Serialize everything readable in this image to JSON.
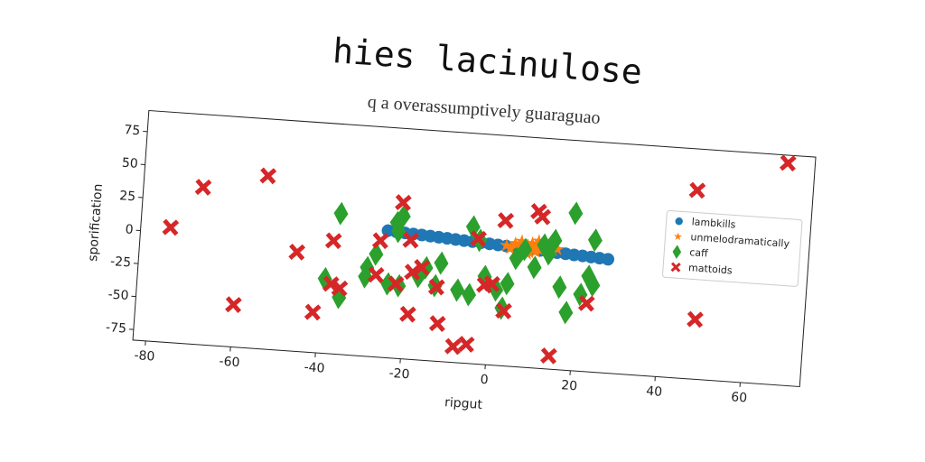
{
  "chart_data": {
    "type": "scatter",
    "title": "hies lacinulose",
    "subtitle": "q a overassumptively guaraguao",
    "xlabel": "ripgut",
    "ylabel": "sporification",
    "xlim": [
      -83,
      74
    ],
    "ylim": [
      -83,
      91
    ],
    "xticks": [
      -80,
      -60,
      -40,
      -20,
      0,
      20,
      40,
      60
    ],
    "yticks": [
      -75,
      -50,
      -25,
      0,
      25,
      50,
      75
    ],
    "grid": false,
    "legend": "right",
    "series": [
      {
        "name": "lambkills",
        "color": "#1f77b4",
        "marker": "circle",
        "x": [
          -25,
          -23,
          -21,
          -19,
          -17,
          -15,
          -13,
          -11,
          -9,
          -7,
          -5,
          -3,
          -1,
          1,
          3,
          5,
          7,
          9,
          11,
          13,
          15,
          17,
          19,
          21,
          23,
          25,
          27
        ],
        "y": [
          13,
          12.6,
          12.2,
          11.8,
          11.5,
          11.1,
          10.7,
          10.3,
          9.9,
          9.5,
          9.2,
          8.8,
          8.4,
          8,
          7.6,
          7.2,
          6.8,
          6.5,
          6.1,
          5.7,
          5.3,
          4.9,
          4.5,
          4.2,
          3.8,
          3.4,
          3
        ]
      },
      {
        "name": "unmelodramatically",
        "color": "#ff7f0e",
        "marker": "star",
        "x": [
          3,
          4,
          5,
          6,
          6.5,
          7,
          8,
          8.5,
          9,
          9.5,
          10,
          10.5,
          11,
          12,
          13,
          14,
          15,
          8,
          10,
          12
        ],
        "y": [
          8,
          6,
          10,
          7,
          12,
          5,
          9,
          4,
          11,
          7,
          8,
          13,
          6,
          9,
          10,
          7,
          8,
          3,
          5,
          11
        ]
      },
      {
        "name": "caff",
        "color": "#2ca02c",
        "marker": "diamond",
        "x": [
          -36.3,
          -39,
          -35.4,
          -29.3,
          -27.4,
          -23,
          -22.5,
          -21.6,
          -24.2,
          -21.6,
          -17.1,
          -15.5,
          -12,
          -13.1,
          -7.8,
          -5,
          -5.1,
          -3.3,
          -1.6,
          1.3,
          2.9,
          3.8,
          5.5,
          7.4,
          9.9,
          11.8,
          13.1,
          14.3,
          16.1,
          18,
          18.7,
          21.1,
          22.7,
          23.7,
          23.9,
          -29.6
        ],
        "y": [
          23.4,
          -26.6,
          -40,
          -16,
          -5.4,
          19.5,
          12.9,
          24.7,
          -27.2,
          -28,
          -20,
          -13,
          -8.7,
          -26,
          -28.2,
          -31,
          20.3,
          10.5,
          -16.5,
          -26,
          -39.5,
          -20.7,
          -1.2,
          6,
          -7,
          10.4,
          3.9,
          14.4,
          -20.6,
          -39.4,
          36,
          -25,
          -10.9,
          16.7,
          -17.4,
          -23
        ]
      },
      {
        "name": "mattoids",
        "color": "#d62728",
        "marker": "x",
        "x": [
          -76,
          -69,
          -54,
          -46,
          -60,
          -41.3,
          -37.6,
          -37.5,
          -35.4,
          -27.1,
          -26.6,
          -21.9,
          -19.5,
          -22.3,
          -18.6,
          -16.5,
          -19,
          -12.7,
          -11.9,
          -7.9,
          -4.8,
          -3.7,
          -1.5,
          0.2,
          3.4,
          2.4,
          10,
          11,
          14.7,
          22.7,
          46.8,
          48.4,
          67.6
        ],
        "y": [
          4,
          36,
          48,
          -8,
          -51,
          -52.5,
          2.5,
          -30.3,
          -33,
          -21,
          5,
          35,
          7,
          -26.8,
          -17,
          -13,
          -49,
          -27,
          -54.5,
          -71,
          -68.6,
          11.7,
          -23,
          -21.6,
          -41.4,
          26.8,
          35.4,
          31.6,
          -73,
          -31.4,
          59.7,
          -37.8,
          85
        ]
      }
    ]
  }
}
